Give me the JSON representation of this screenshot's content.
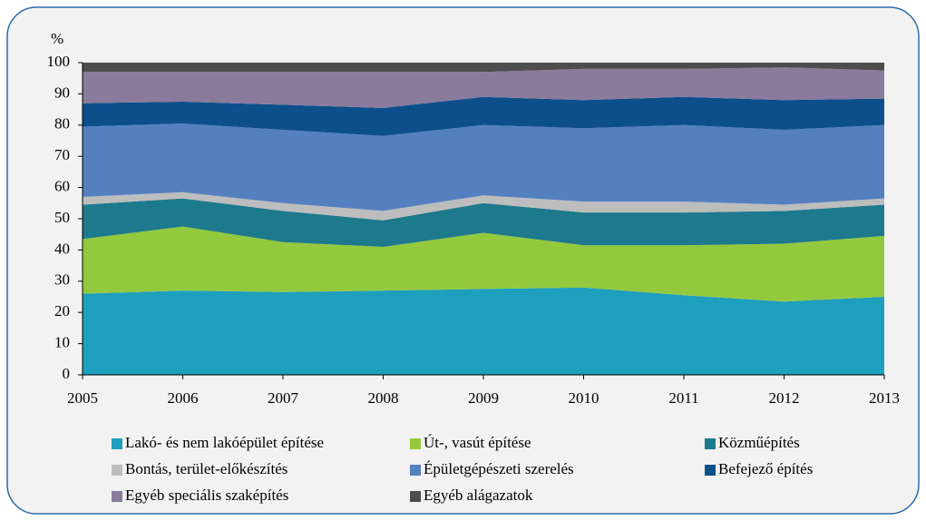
{
  "chart_data": {
    "type": "stacked_area",
    "y_label": "%",
    "x": [
      2005,
      2006,
      2007,
      2008,
      2009,
      2010,
      2011,
      2012,
      2013
    ],
    "xlim": [
      2005,
      2013
    ],
    "xticks": [
      2005,
      2006,
      2007,
      2008,
      2009,
      2010,
      2011,
      2012,
      2013
    ],
    "ylim": [
      0,
      100
    ],
    "yticks": [
      0,
      10,
      20,
      30,
      40,
      50,
      60,
      70,
      80,
      90,
      100
    ],
    "series": [
      {
        "name": "Lakó- és nem lakóépület építése",
        "color": "#1e9fbd",
        "values": [
          26,
          27,
          26.5,
          27,
          27.5,
          28,
          25.5,
          23.5,
          25
        ]
      },
      {
        "name": "Út-, vasút építése",
        "color": "#95c93d",
        "values": [
          17.5,
          20.5,
          16,
          14,
          18,
          13.5,
          16,
          18.5,
          19.5
        ]
      },
      {
        "name": "Közműépítés",
        "color": "#1d7a8c",
        "values": [
          11,
          9,
          10,
          8.5,
          9.5,
          10.5,
          10.5,
          10.5,
          10
        ]
      },
      {
        "name": "Bontás, terület-előkészítés",
        "color": "#bdbdbd",
        "values": [
          2.5,
          2,
          2.5,
          3,
          2.5,
          3.5,
          3.5,
          2,
          2
        ]
      },
      {
        "name": "Épületgépészeti szerelés",
        "color": "#5580c0",
        "values": [
          22.5,
          22,
          23.5,
          24,
          22.5,
          23.5,
          24.5,
          24,
          23.5
        ]
      },
      {
        "name": "Befejező építés",
        "color": "#0d4f8b",
        "values": [
          7.5,
          7,
          8,
          9,
          9,
          9,
          9,
          9.5,
          8.5
        ]
      },
      {
        "name": "Egyéb speciális szaképítés",
        "color": "#8a7b9c",
        "values": [
          10,
          9.5,
          10.5,
          11.5,
          8,
          10,
          9,
          10.5,
          9
        ]
      },
      {
        "name": "Egyéb alágazatok",
        "color": "#4d4d4d",
        "values": [
          3,
          3,
          3,
          3,
          3,
          2,
          2,
          1.5,
          2.5
        ]
      }
    ]
  }
}
